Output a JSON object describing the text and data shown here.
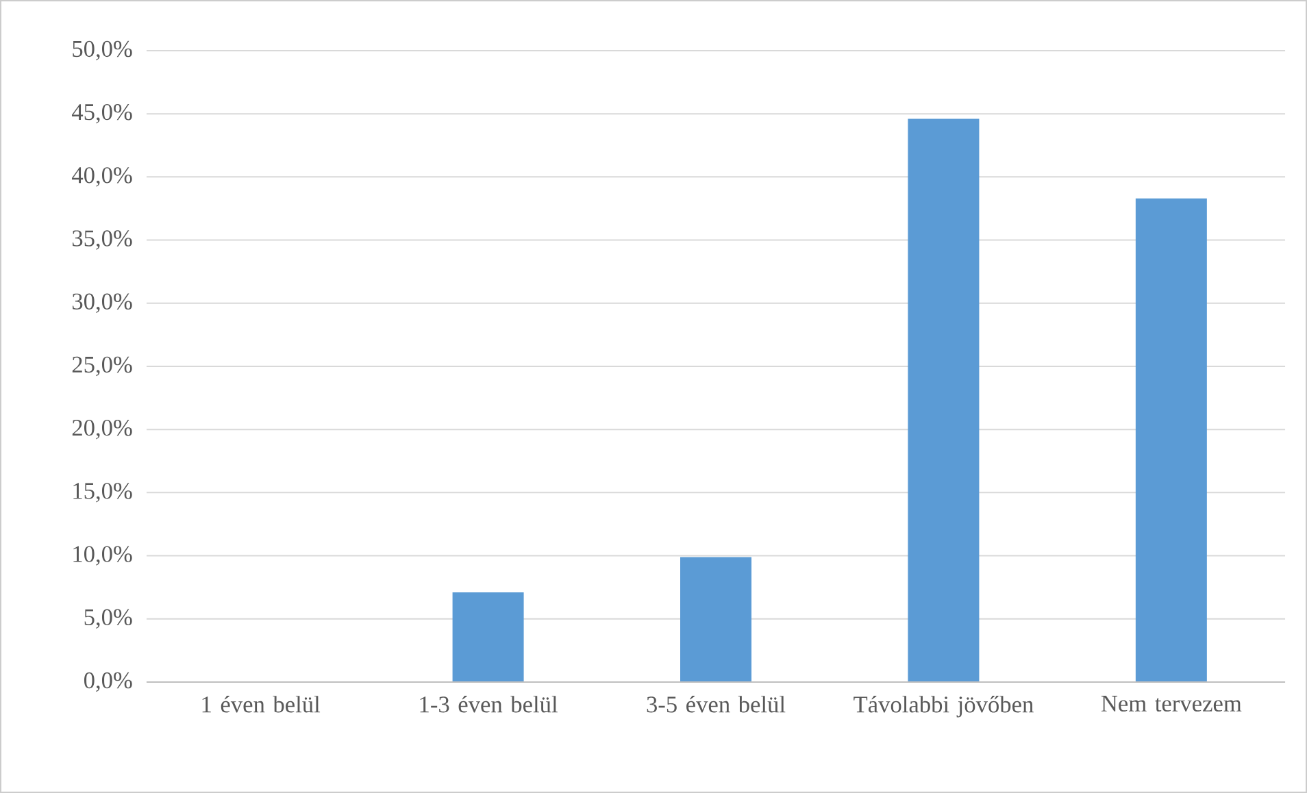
{
  "chart_data": {
    "type": "bar",
    "categories": [
      "1 éven belül",
      "1-3 éven belül",
      "3-5 éven belül",
      "Távolabbi jövőben",
      "Nem tervezem"
    ],
    "values": [
      0,
      7.1,
      9.9,
      44.6,
      38.3
    ],
    "color": "#5b9bd5",
    "ylim": [
      0,
      50
    ],
    "yticks": [
      {
        "value": 0,
        "label": "0,0%"
      },
      {
        "value": 5,
        "label": "5,0%"
      },
      {
        "value": 10,
        "label": "10,0%"
      },
      {
        "value": 15,
        "label": "15,0%"
      },
      {
        "value": 20,
        "label": "20,0%"
      },
      {
        "value": 25,
        "label": "25,0%"
      },
      {
        "value": 30,
        "label": "30,0%"
      },
      {
        "value": 35,
        "label": "35,0%"
      },
      {
        "value": 40,
        "label": "40,0%"
      },
      {
        "value": 45,
        "label": "45,0%"
      },
      {
        "value": 50,
        "label": "50,0%"
      }
    ],
    "grid": "y"
  }
}
